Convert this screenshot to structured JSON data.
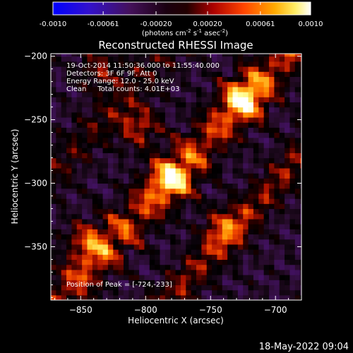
{
  "colorbar": {
    "tick_labels": [
      "-0.0010",
      "-0.00061",
      "-0.00020",
      "0.00020",
      "0.00061",
      "0.0010"
    ],
    "tick_values": [
      -0.001,
      -0.00061,
      -0.0002,
      0.0002,
      0.00061,
      0.001
    ],
    "range": [
      -0.001,
      0.001
    ],
    "units_prefix": "(photons cm",
    "units_exp1": "-2",
    "units_mid1": " s",
    "units_exp2": "-1",
    "units_mid2": " asec",
    "units_exp3": "-2",
    "units_suffix": ")"
  },
  "chart_data": {
    "type": "heatmap",
    "title": "Reconstructed RHESSI Image",
    "xlabel": "Heliocentric X (arcsec)",
    "ylabel": "Heliocentric Y (arcsec)",
    "xlim": [
      -873,
      -680
    ],
    "ylim": [
      -392,
      -198
    ],
    "x_ticks": [
      -850,
      -800,
      -750,
      -700
    ],
    "x_tick_labels": [
      "−850",
      "−800",
      "−750",
      "−700"
    ],
    "y_ticks": [
      -200,
      -250,
      -300,
      -350
    ],
    "y_tick_labels": [
      "−200",
      "−250",
      "−300",
      "−350"
    ],
    "info_lines": [
      "19-Oct-2014 11:50:36.000 to 11:55:40.000",
      "Detectors: 3F 6F 9F, Att 0",
      "Energy Range: 12.0 - 25.0 keV",
      "Clean     Total counts: 4.01E+03"
    ],
    "peak_label": "Position of Peak = [-724,-233]",
    "peak_position": [
      -724,
      -233
    ],
    "colormap": [
      "#0000cc",
      "#3311aa",
      "#441166",
      "#3a1050",
      "#220a22",
      "#000000",
      "#330000",
      "#aa1100",
      "#ee4400",
      "#ff8800",
      "#ffcc33",
      "#ffff99",
      "#ffffff"
    ],
    "sources": [
      {
        "x": -780,
        "y": -296,
        "amplitude": 0.95
      },
      {
        "x": -724,
        "y": -233,
        "amplitude": 1.0
      },
      {
        "x": -805,
        "y": -255,
        "amplitude": 0.7
      },
      {
        "x": -845,
        "y": -345,
        "amplitude": 0.65
      },
      {
        "x": -835,
        "y": -210,
        "amplitude": 0.55
      },
      {
        "x": -740,
        "y": -335,
        "amplitude": 0.6
      }
    ]
  },
  "timestamp": "18-May-2022 09:04"
}
